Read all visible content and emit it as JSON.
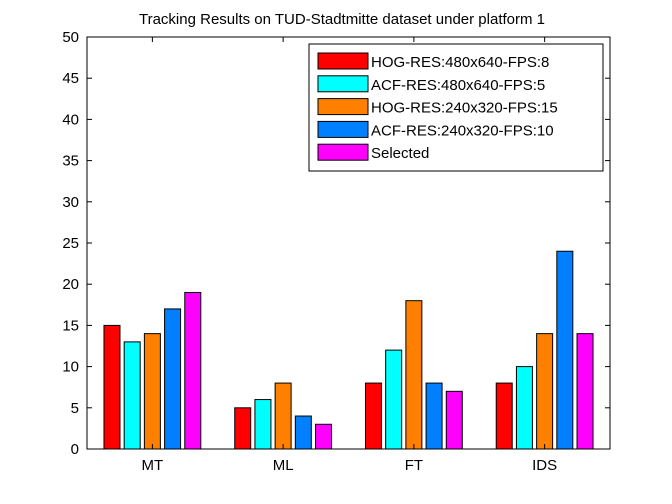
{
  "chart_data": {
    "type": "bar",
    "title": "Tracking Results on TUD-Stadtmitte dataset under platform 1",
    "xlabel": "",
    "ylabel": "",
    "categories": [
      "MT",
      "ML",
      "FT",
      "IDS"
    ],
    "ylim": [
      0,
      50
    ],
    "yticks": [
      0,
      5,
      10,
      15,
      20,
      25,
      30,
      35,
      40,
      45,
      50
    ],
    "grid": false,
    "legend_position": "top-right",
    "series": [
      {
        "name": "HOG-RES:480x640-FPS:8",
        "color": "#ff0000",
        "values": [
          15,
          5,
          8,
          8
        ]
      },
      {
        "name": "ACF-RES:480x640-FPS:5",
        "color": "#00ffff",
        "values": [
          13,
          6,
          12,
          10
        ]
      },
      {
        "name": "HOG-RES:240x320-FPS:15",
        "color": "#ff8000",
        "values": [
          14,
          8,
          18,
          14
        ]
      },
      {
        "name": "ACF-RES:240x320-FPS:10",
        "color": "#0080ff",
        "values": [
          17,
          4,
          8,
          24
        ]
      },
      {
        "name": "Selected",
        "color": "#ff00ff",
        "values": [
          19,
          3,
          7,
          14
        ]
      }
    ]
  }
}
